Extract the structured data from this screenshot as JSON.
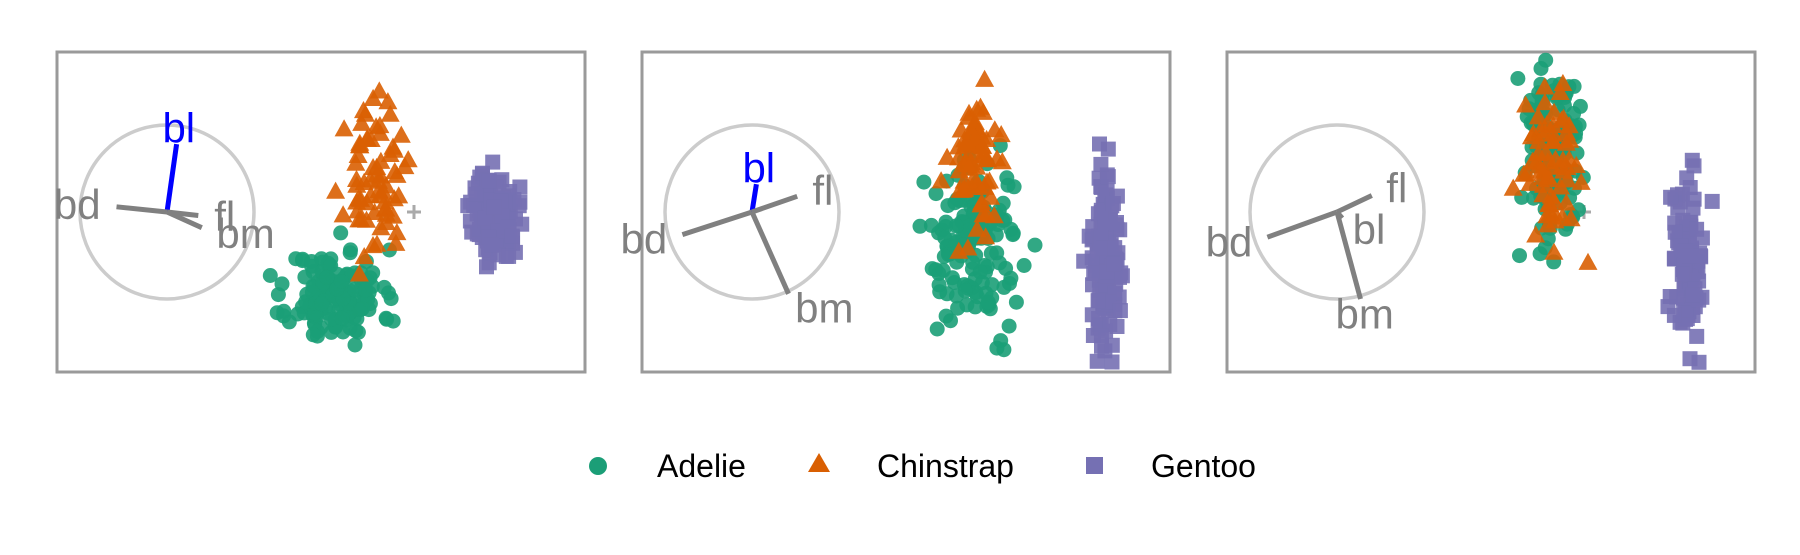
{
  "chart_data": {
    "type": "scatter",
    "description_kind": "tour projection small multiples",
    "colors": {
      "Adelie": "#1b9e77",
      "Chinstrap": "#d95f02",
      "Gentoo": "#7570b3",
      "frame": "#9a9a9a",
      "axis_active": "#0000ff",
      "axis_other": "#808080",
      "circle": "#cccccc"
    },
    "legend": {
      "position": "bottom",
      "entries": [
        {
          "name": "Adelie",
          "marker": "circle"
        },
        {
          "name": "Chinstrap",
          "marker": "triangle"
        },
        {
          "name": "Gentoo",
          "marker": "square"
        }
      ]
    },
    "panels": [
      {
        "axes": [
          {
            "label": "bl",
            "x": 0.11,
            "y": 0.78,
            "active": true
          },
          {
            "label": "bd",
            "x": -0.58,
            "y": 0.06,
            "active": false
          },
          {
            "label": "fl",
            "x": 0.36,
            "y": -0.04,
            "active": false
          },
          {
            "label": "bm",
            "x": 0.4,
            "y": -0.18,
            "active": false
          }
        ],
        "clusters": [
          {
            "species": "Adelie",
            "n": 150,
            "cx": -0.54,
            "cy": -0.58,
            "sx": 0.16,
            "sy": 0.16,
            "seed": 11
          },
          {
            "species": "Chinstrap",
            "n": 68,
            "cx": -0.27,
            "cy": 0.21,
            "sx": 0.1,
            "sy": 0.25,
            "seed": 23
          },
          {
            "species": "Gentoo",
            "n": 120,
            "cx": 0.56,
            "cy": -0.02,
            "sx": 0.08,
            "sy": 0.15,
            "seed": 37
          }
        ]
      },
      {
        "axes": [
          {
            "label": "bl",
            "x": 0.05,
            "y": 0.32,
            "active": true
          },
          {
            "label": "fl",
            "x": 0.52,
            "y": 0.18,
            "active": false
          },
          {
            "label": "bd",
            "x": -0.8,
            "y": -0.26,
            "active": false
          },
          {
            "label": "bm",
            "x": 0.42,
            "y": -0.94,
            "active": false
          }
        ],
        "clusters": [
          {
            "species": "Adelie",
            "n": 150,
            "cx": -0.17,
            "cy": -0.21,
            "sx": 0.16,
            "sy": 0.29,
            "seed": 41
          },
          {
            "species": "Chinstrap",
            "n": 68,
            "cx": -0.16,
            "cy": 0.35,
            "sx": 0.09,
            "sy": 0.26,
            "seed": 53
          },
          {
            "species": "Gentoo",
            "n": 120,
            "cx": 0.73,
            "cy": -0.38,
            "sx": 0.05,
            "sy": 0.32,
            "seed": 67
          }
        ]
      },
      {
        "axes": [
          {
            "label": "bl",
            "x": 0.06,
            "y": -0.07,
            "active": false
          },
          {
            "label": "fl",
            "x": 0.4,
            "y": 0.19,
            "active": false
          },
          {
            "label": "bd",
            "x": -0.8,
            "y": -0.29,
            "active": false
          },
          {
            "label": "bm",
            "x": 0.27,
            "y": -1.0,
            "active": false
          }
        ],
        "clusters": [
          {
            "species": "Adelie",
            "n": 150,
            "cx": -0.21,
            "cy": 0.38,
            "sx": 0.11,
            "sy": 0.33,
            "seed": 71
          },
          {
            "species": "Chinstrap",
            "n": 68,
            "cx": -0.21,
            "cy": 0.33,
            "sx": 0.1,
            "sy": 0.32,
            "seed": 83
          },
          {
            "species": "Gentoo",
            "n": 120,
            "cx": 0.7,
            "cy": -0.38,
            "sx": 0.06,
            "sy": 0.34,
            "seed": 97
          }
        ]
      }
    ]
  }
}
